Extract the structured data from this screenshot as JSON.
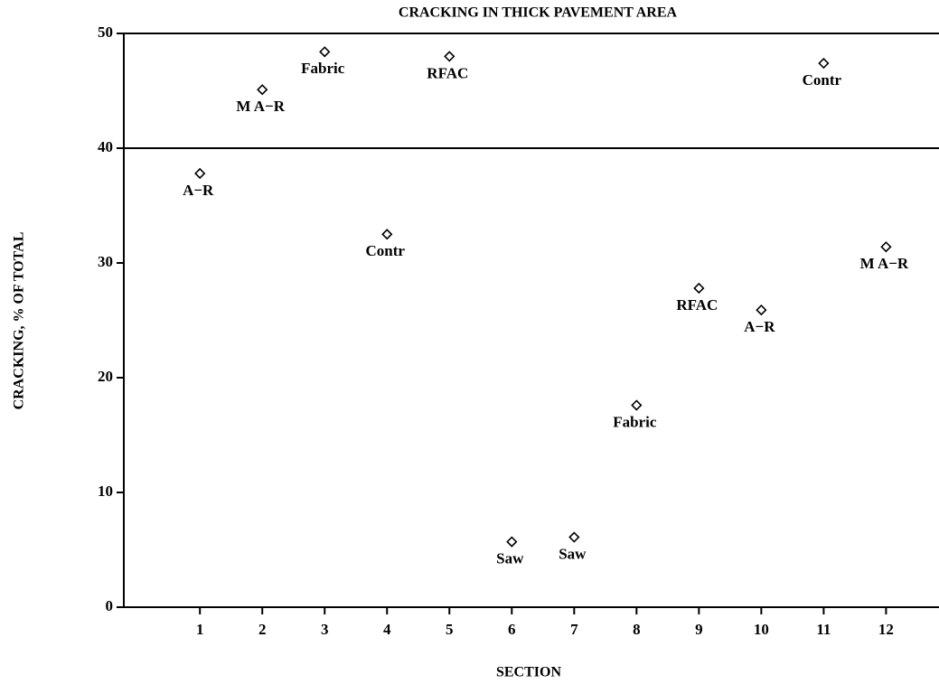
{
  "chart_data": {
    "type": "scatter",
    "title": "CRACKING IN THICK PAVEMENT AREA",
    "x_label": "SECTION",
    "y_label": "CRACKING, % OF TOTAL",
    "x": [
      1,
      2,
      3,
      4,
      5,
      6,
      7,
      8,
      9,
      10,
      11,
      12
    ],
    "values": [
      37.8,
      45.1,
      48.4,
      32.5,
      48.0,
      5.7,
      6.1,
      17.6,
      27.8,
      25.9,
      47.4,
      31.4
    ],
    "point_labels": [
      "A−R",
      "M A−R",
      "Fabric",
      "Contr",
      "RFAC",
      "Saw",
      "Saw",
      "Fabric",
      "RFAC",
      "A−R",
      "Contr",
      "M A−R"
    ],
    "reference_line": 40,
    "color": "#000000",
    "xlim": [
      -0.22,
      12.82
    ],
    "ylim": [
      0,
      50
    ],
    "xticks": [
      1,
      2,
      3,
      4,
      5,
      6,
      7,
      8,
      9,
      10,
      11,
      12
    ],
    "yticks": [
      0,
      10,
      20,
      30,
      40,
      50
    ],
    "grid": false
  }
}
